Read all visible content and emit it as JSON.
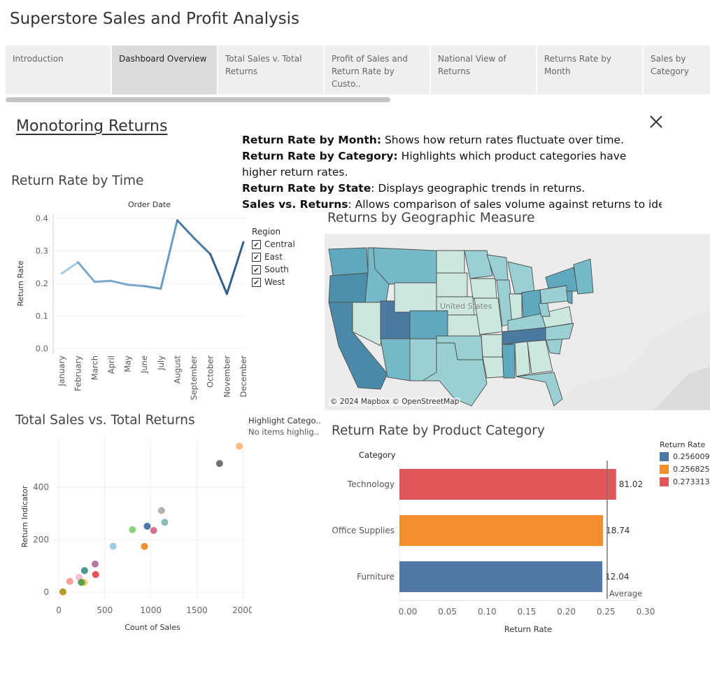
{
  "app": {
    "title": "Superstore Sales and Profit Analysis"
  },
  "tabs": [
    {
      "label": "Introduction",
      "active": false
    },
    {
      "label": "Dashboard Overview",
      "active": true
    },
    {
      "label": "Total Sales v. Total Returns",
      "active": false
    },
    {
      "label": "Profit of Sales and Return Rate by Custo..",
      "active": false
    },
    {
      "label": "National View of Returns",
      "active": false
    },
    {
      "label": "Returns Rate by Month",
      "active": false
    },
    {
      "label": "Sales by Category",
      "active": false
    }
  ],
  "story": {
    "title": "Monotoring Returns",
    "descriptions": [
      {
        "bold": "Return Rate by Month:",
        "text": " Shows how return rates fluctuate over time."
      },
      {
        "bold": "Return Rate by Category:",
        "text": " Highlights which product categories have higher return rates."
      },
      {
        "bold": "Return Rate by State",
        "text": ": Displays geographic trends in returns."
      },
      {
        "bold": "Sales vs. Returns",
        "text": ": Allows comparison of sales volume against returns to identi.."
      }
    ]
  },
  "line_chart": {
    "sheet_title": "Return Rate by Time",
    "header": "Order Date",
    "legend_title": "Region",
    "legend_items": [
      {
        "label": "Central",
        "checked": true
      },
      {
        "label": "East",
        "checked": true
      },
      {
        "label": "South",
        "checked": true
      },
      {
        "label": "West",
        "checked": true
      }
    ]
  },
  "map": {
    "title": "Returns by Geographic Measure",
    "attribution": "© 2024 Mapbox © OpenStreetMap",
    "country_label": "United States"
  },
  "scatter": {
    "sheet_title": "Total Sales vs. Total Returns",
    "highlight_title": "Highlight Catego..",
    "highlight_placeholder": "No items highlig.."
  },
  "bar": {
    "sheet_title": "Return Rate by Product Category",
    "legend_title": "Return Rate",
    "legend_items": [
      {
        "label": "0.256009",
        "color": "#4e79a7"
      },
      {
        "label": "0.256825",
        "color": "#f28e2b"
      },
      {
        "label": "0.273313",
        "color": "#e15759"
      }
    ]
  },
  "chart_data": [
    {
      "type": "line",
      "title": "Return Rate by Time",
      "header": "Order Date",
      "xlabel": "",
      "ylabel": "Return Rate",
      "categories": [
        "January",
        "February",
        "March",
        "April",
        "May",
        "June",
        "July",
        "August",
        "September",
        "October",
        "November",
        "December"
      ],
      "ylim": [
        0,
        0.4
      ],
      "yticks": [
        0.0,
        0.1,
        0.2,
        0.3,
        0.4
      ],
      "series": [
        {
          "name": "Return Rate",
          "values": [
            0.23,
            0.265,
            0.205,
            0.208,
            0.196,
            0.192,
            0.184,
            0.394,
            0.34,
            0.29,
            0.168,
            0.327
          ],
          "colors": [
            "#a7c9e2",
            "#a7c9e2",
            "#7aa9cc",
            "#7aa9cc",
            "#7aa9cc",
            "#7aa9cc",
            "#6a9bc3",
            "#6a9bc3",
            "#4a7aa2",
            "#4a7aa2",
            "#355f86",
            "#355f86"
          ]
        }
      ],
      "legend": {
        "title": "Region",
        "items": [
          "Central",
          "East",
          "South",
          "West"
        ]
      }
    },
    {
      "type": "scatter",
      "title": "Total Sales vs. Total Returns",
      "xlabel": "Count of Sales",
      "ylabel": "Return Indicator",
      "xlim": [
        0,
        2050
      ],
      "ylim": [
        0,
        560
      ],
      "xticks": [
        0,
        500,
        1000,
        1500,
        2000
      ],
      "yticks": [
        0,
        200,
        400
      ],
      "points": [
        {
          "x": 1960,
          "y": 556,
          "color": "#ffbe7d"
        },
        {
          "x": 1745,
          "y": 490,
          "color": "#79706e"
        },
        {
          "x": 1115,
          "y": 311,
          "color": "#bab0ac"
        },
        {
          "x": 1150,
          "y": 266,
          "color": "#86bcb6"
        },
        {
          "x": 960,
          "y": 251,
          "color": "#4e79a7"
        },
        {
          "x": 1030,
          "y": 235,
          "color": "#d37295"
        },
        {
          "x": 800,
          "y": 238,
          "color": "#8cd17d"
        },
        {
          "x": 930,
          "y": 174,
          "color": "#f28e2b"
        },
        {
          "x": 590,
          "y": 175,
          "color": "#a0cbe8"
        },
        {
          "x": 395,
          "y": 107,
          "color": "#b07aa1"
        },
        {
          "x": 280,
          "y": 82,
          "color": "#499894"
        },
        {
          "x": 400,
          "y": 67,
          "color": "#e15759"
        },
        {
          "x": 220,
          "y": 56,
          "color": "#fabfd2"
        },
        {
          "x": 120,
          "y": 41,
          "color": "#ff9d9a"
        },
        {
          "x": 275,
          "y": 37,
          "color": "#f1ce63"
        },
        {
          "x": 245,
          "y": 37,
          "color": "#59a14f"
        },
        {
          "x": 45,
          "y": 1,
          "color": "#b6992d"
        }
      ]
    },
    {
      "type": "bar",
      "orientation": "horizontal",
      "title": "Return Rate by Product Category",
      "xlabel": "Return Rate",
      "ylabel": "Category",
      "categories": [
        "Technology",
        "Office Supplies",
        "Furniture"
      ],
      "values": [
        0.273313,
        0.256825,
        0.256009
      ],
      "labels": [
        "81.02",
        "18.74",
        "12.04"
      ],
      "colors": [
        "#e15759",
        "#f28e2b",
        "#4e79a7"
      ],
      "reference_line": {
        "label": "Average",
        "value": 0.262
      },
      "xlim": [
        0,
        0.3
      ],
      "xticks": [
        "0.00",
        "0.05",
        "0.10",
        "0.15",
        "0.20",
        "0.25",
        "0.30"
      ]
    }
  ]
}
